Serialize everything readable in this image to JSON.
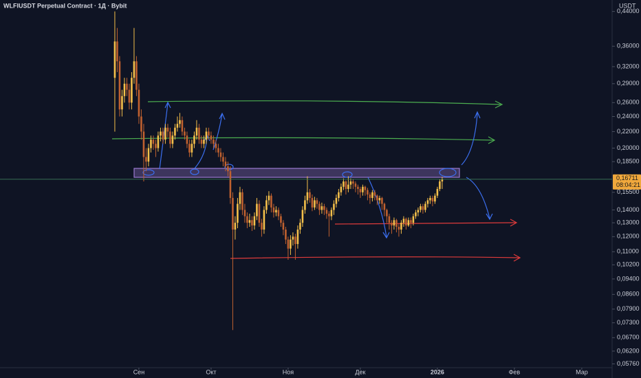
{
  "chart_data": {
    "type": "candlestick",
    "title": "WLFIUSDT Perpetual Contract · 1Д · Bybit",
    "currency": "USDT",
    "log_scale": true,
    "grid": false,
    "up_color": "#f5c04a",
    "down_color": "#c0612f",
    "xlim": [
      -47.7,
      206.6
    ],
    "xticks": [
      {
        "value": 10,
        "label": "Сен"
      },
      {
        "value": 40,
        "label": "Окт"
      },
      {
        "value": 72,
        "label": "Ноя"
      },
      {
        "value": 102,
        "label": "Дек"
      },
      {
        "value": 134,
        "label": "2026"
      },
      {
        "value": 166,
        "label": "Фев"
      },
      {
        "value": 194,
        "label": "Мар"
      }
    ],
    "ylim": [
      0.0559,
      0.47
    ],
    "yticks": [
      {
        "value": 0.44,
        "label": "0,44000"
      },
      {
        "value": 0.36,
        "label": "0,36000"
      },
      {
        "value": 0.32,
        "label": "0,32000"
      },
      {
        "value": 0.29,
        "label": "0,29000"
      },
      {
        "value": 0.26,
        "label": "0,26000"
      },
      {
        "value": 0.24,
        "label": "0,24000"
      },
      {
        "value": 0.22,
        "label": "0,22000"
      },
      {
        "value": 0.2,
        "label": "0,20000"
      },
      {
        "value": 0.185,
        "label": "0,18500"
      },
      {
        "value": 0.155,
        "label": "0,15500"
      },
      {
        "value": 0.14,
        "label": "0,14000"
      },
      {
        "value": 0.13,
        "label": "0,13000"
      },
      {
        "value": 0.12,
        "label": "0,12000"
      },
      {
        "value": 0.11,
        "label": "0,11000"
      },
      {
        "value": 0.102,
        "label": "0,10200"
      },
      {
        "value": 0.094,
        "label": "0,09400"
      },
      {
        "value": 0.086,
        "label": "0,08600"
      },
      {
        "value": 0.079,
        "label": "0,07900"
      },
      {
        "value": 0.073,
        "label": "0,07300"
      },
      {
        "value": 0.067,
        "label": "0,06700"
      },
      {
        "value": 0.062,
        "label": "0,06200"
      },
      {
        "value": 0.0576,
        "label": "0,05760"
      }
    ],
    "last_price": {
      "value": 0.16711,
      "label": "0,16711"
    },
    "countdown": "08:04:21",
    "open": [
      0.3,
      0.37,
      0.33,
      0.25,
      0.27,
      0.29,
      0.28,
      0.26,
      0.3,
      0.33,
      0.28,
      0.24,
      0.22,
      0.19,
      0.185,
      0.2,
      0.21,
      0.205,
      0.2,
      0.215,
      0.22,
      0.21,
      0.225,
      0.22,
      0.205,
      0.215,
      0.225,
      0.23,
      0.235,
      0.22,
      0.215,
      0.205,
      0.195,
      0.205,
      0.215,
      0.225,
      0.21,
      0.205,
      0.21,
      0.22,
      0.215,
      0.21,
      0.205,
      0.2,
      0.195,
      0.19,
      0.185,
      0.18,
      0.175,
      0.15,
      0.125,
      0.13,
      0.145,
      0.155,
      0.14,
      0.135,
      0.13,
      0.132,
      0.128,
      0.135,
      0.145,
      0.13,
      0.125,
      0.14,
      0.148,
      0.152,
      0.142,
      0.138,
      0.14,
      0.135,
      0.13,
      0.125,
      0.118,
      0.112,
      0.118,
      0.12,
      0.115,
      0.125,
      0.13,
      0.14,
      0.148,
      0.155,
      0.15,
      0.142,
      0.148,
      0.145,
      0.14,
      0.143,
      0.14,
      0.137,
      0.135,
      0.14,
      0.145,
      0.15,
      0.155,
      0.16,
      0.165,
      0.158,
      0.162,
      0.165,
      0.163,
      0.16,
      0.158,
      0.155,
      0.16,
      0.157,
      0.153,
      0.15,
      0.155,
      0.152,
      0.148,
      0.15,
      0.145,
      0.14,
      0.135,
      0.13,
      0.128,
      0.132,
      0.127,
      0.125,
      0.13,
      0.133,
      0.128,
      0.132,
      0.13,
      0.135,
      0.138,
      0.14,
      0.143,
      0.14,
      0.145,
      0.148,
      0.15,
      0.147,
      0.152,
      0.158,
      0.165
    ],
    "high": [
      0.44,
      0.4,
      0.34,
      0.28,
      0.3,
      0.3,
      0.29,
      0.31,
      0.4,
      0.34,
      0.29,
      0.25,
      0.23,
      0.2,
      0.205,
      0.215,
      0.215,
      0.21,
      0.22,
      0.225,
      0.225,
      0.23,
      0.23,
      0.225,
      0.22,
      0.23,
      0.24,
      0.245,
      0.24,
      0.225,
      0.22,
      0.21,
      0.21,
      0.22,
      0.235,
      0.23,
      0.215,
      0.215,
      0.225,
      0.225,
      0.22,
      0.215,
      0.21,
      0.205,
      0.2,
      0.195,
      0.19,
      0.185,
      0.18,
      0.155,
      0.135,
      0.15,
      0.16,
      0.158,
      0.145,
      0.138,
      0.137,
      0.135,
      0.138,
      0.15,
      0.148,
      0.133,
      0.143,
      0.152,
      0.156,
      0.154,
      0.145,
      0.143,
      0.142,
      0.137,
      0.132,
      0.127,
      0.12,
      0.121,
      0.123,
      0.122,
      0.128,
      0.133,
      0.143,
      0.152,
      0.17,
      0.158,
      0.153,
      0.151,
      0.15,
      0.147,
      0.146,
      0.145,
      0.142,
      0.139,
      0.142,
      0.148,
      0.153,
      0.158,
      0.163,
      0.168,
      0.166,
      0.17,
      0.168,
      0.167,
      0.165,
      0.162,
      0.16,
      0.162,
      0.161,
      0.159,
      0.155,
      0.157,
      0.157,
      0.153,
      0.152,
      0.151,
      0.146,
      0.141,
      0.137,
      0.132,
      0.134,
      0.133,
      0.129,
      0.132,
      0.135,
      0.134,
      0.134,
      0.134,
      0.137,
      0.14,
      0.142,
      0.145,
      0.145,
      0.147,
      0.15,
      0.152,
      0.152,
      0.154,
      0.16,
      0.167,
      0.1695
    ],
    "low": [
      0.22,
      0.31,
      0.24,
      0.24,
      0.26,
      0.27,
      0.25,
      0.25,
      0.29,
      0.27,
      0.23,
      0.21,
      0.165,
      0.175,
      0.18,
      0.195,
      0.198,
      0.19,
      0.196,
      0.208,
      0.205,
      0.205,
      0.213,
      0.2,
      0.2,
      0.21,
      0.22,
      0.225,
      0.215,
      0.21,
      0.2,
      0.19,
      0.19,
      0.2,
      0.21,
      0.205,
      0.2,
      0.2,
      0.205,
      0.21,
      0.205,
      0.2,
      0.195,
      0.19,
      0.185,
      0.18,
      0.175,
      0.17,
      0.145,
      0.07,
      0.118,
      0.126,
      0.14,
      0.136,
      0.13,
      0.126,
      0.127,
      0.124,
      0.125,
      0.132,
      0.127,
      0.12,
      0.122,
      0.137,
      0.144,
      0.138,
      0.134,
      0.135,
      0.132,
      0.127,
      0.121,
      0.115,
      0.105,
      0.108,
      0.114,
      0.105,
      0.112,
      0.122,
      0.127,
      0.137,
      0.145,
      0.146,
      0.139,
      0.14,
      0.141,
      0.136,
      0.137,
      0.136,
      0.133,
      0.12,
      0.132,
      0.136,
      0.142,
      0.147,
      0.152,
      0.157,
      0.153,
      0.155,
      0.158,
      0.158,
      0.155,
      0.153,
      0.15,
      0.152,
      0.152,
      0.148,
      0.145,
      0.147,
      0.148,
      0.144,
      0.145,
      0.14,
      0.135,
      0.13,
      0.125,
      0.122,
      0.125,
      0.123,
      0.12,
      0.122,
      0.127,
      0.125,
      0.127,
      0.126,
      0.128,
      0.133,
      0.135,
      0.138,
      0.137,
      0.138,
      0.142,
      0.145,
      0.143,
      0.145,
      0.15,
      0.156,
      0.158
    ],
    "close": [
      0.37,
      0.33,
      0.25,
      0.27,
      0.29,
      0.28,
      0.26,
      0.3,
      0.33,
      0.28,
      0.24,
      0.22,
      0.19,
      0.185,
      0.2,
      0.21,
      0.205,
      0.2,
      0.215,
      0.22,
      0.21,
      0.225,
      0.22,
      0.205,
      0.215,
      0.225,
      0.23,
      0.235,
      0.22,
      0.215,
      0.205,
      0.195,
      0.205,
      0.215,
      0.225,
      0.21,
      0.205,
      0.21,
      0.22,
      0.215,
      0.21,
      0.205,
      0.2,
      0.195,
      0.19,
      0.185,
      0.18,
      0.175,
      0.15,
      0.125,
      0.13,
      0.145,
      0.155,
      0.14,
      0.135,
      0.13,
      0.132,
      0.128,
      0.135,
      0.145,
      0.13,
      0.125,
      0.14,
      0.148,
      0.152,
      0.142,
      0.138,
      0.14,
      0.135,
      0.13,
      0.125,
      0.118,
      0.112,
      0.118,
      0.12,
      0.115,
      0.125,
      0.13,
      0.14,
      0.148,
      0.155,
      0.15,
      0.142,
      0.148,
      0.145,
      0.14,
      0.143,
      0.14,
      0.137,
      0.135,
      0.14,
      0.145,
      0.15,
      0.155,
      0.16,
      0.165,
      0.158,
      0.162,
      0.165,
      0.163,
      0.16,
      0.158,
      0.155,
      0.16,
      0.157,
      0.153,
      0.15,
      0.155,
      0.152,
      0.148,
      0.15,
      0.145,
      0.14,
      0.135,
      0.13,
      0.128,
      0.132,
      0.127,
      0.125,
      0.13,
      0.133,
      0.128,
      0.132,
      0.13,
      0.135,
      0.138,
      0.14,
      0.143,
      0.14,
      0.145,
      0.148,
      0.15,
      0.147,
      0.152,
      0.158,
      0.165,
      0.16711
    ]
  }
}
